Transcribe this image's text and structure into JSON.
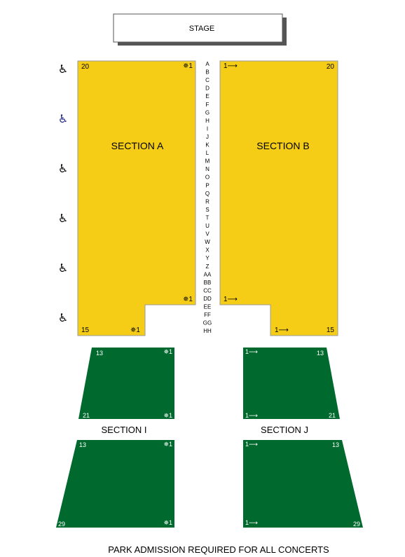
{
  "stage": {
    "label": "STAGE"
  },
  "rows": [
    "A",
    "B",
    "C",
    "D",
    "E",
    "F",
    "G",
    "H",
    "I",
    "J",
    "K",
    "L",
    "M",
    "N",
    "O",
    "P",
    "Q",
    "R",
    "S",
    "T",
    "U",
    "V",
    "W",
    "X",
    "Y",
    "Z",
    "AA",
    "BB",
    "CC",
    "DD",
    "EE",
    "FF",
    "GG",
    "HH"
  ],
  "sections": {
    "a": {
      "label": "SECTION A",
      "seat_top_corner": "20",
      "seat_top_arrow": "✵1",
      "seat_mid_arrow": "✵1",
      "seat_bottom_corner": "15",
      "seat_bottom_arrow": "✵1",
      "color": "#f5cd16"
    },
    "b": {
      "label": "SECTION B",
      "seat_top_corner": "20",
      "seat_top_arrow": "1⟶",
      "seat_mid_arrow": "1⟶",
      "seat_bottom_corner": "15",
      "seat_bottom_arrow": "1⟶",
      "color": "#f5cd16"
    },
    "i": {
      "label": "SECTION I",
      "front_corner": "13",
      "front_arrow": "✵1",
      "back_corner": "21",
      "back_arrow": "✵1",
      "color": "#006a2e"
    },
    "j": {
      "label": "SECTION J",
      "front_corner": "13",
      "front_arrow": "1⟶",
      "back_corner": "21",
      "back_arrow": "1⟶",
      "color": "#006a2e"
    },
    "lower_left": {
      "front_corner": "13",
      "front_arrow": "✵1",
      "back_corner": "29",
      "back_arrow": "✵1",
      "color": "#006a2e"
    },
    "lower_right": {
      "front_corner": "13",
      "front_arrow": "1⟶",
      "back_corner": "29",
      "back_arrow": "1⟶",
      "color": "#006a2e"
    }
  },
  "accessibility": {
    "icon": "wheelchair-icon",
    "glyph": "♿",
    "colors": [
      "#000000",
      "#1a237e",
      "#000000",
      "#000000",
      "#000000",
      "#000000"
    ]
  },
  "footer": {
    "notice": "PARK ADMISSION REQUIRED FOR ALL CONCERTS"
  }
}
